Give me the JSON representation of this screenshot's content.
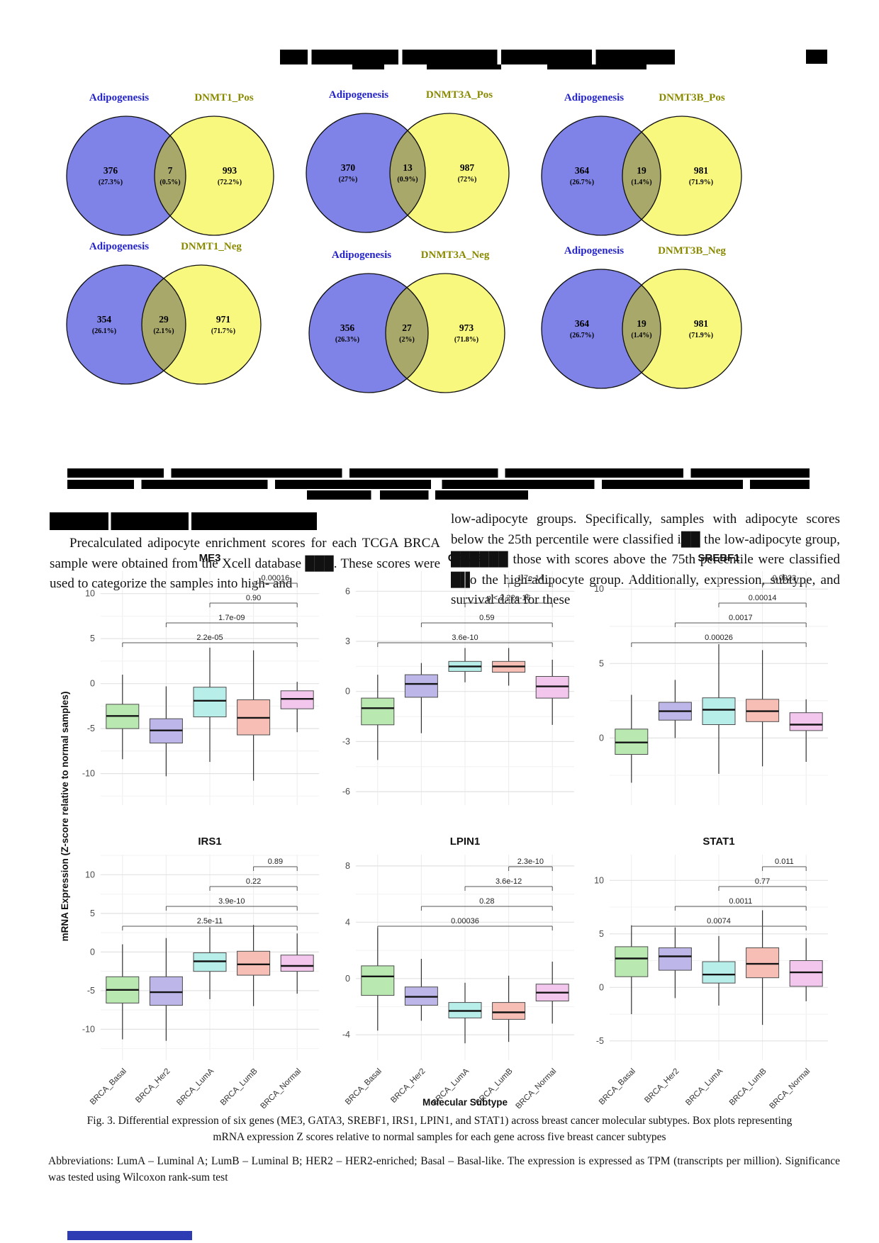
{
  "venn_figure": {
    "panels": [
      {
        "left_label": "Adipogenesis",
        "right_label": "DNMT1_Pos",
        "left_value": "376",
        "left_pct": "(27.3%)",
        "mid_value": "7",
        "mid_pct": "(0.5%)",
        "right_value": "993",
        "right_pct": "(72.2%)"
      },
      {
        "left_label": "Adipogenesis",
        "right_label": "DNMT3A_Pos",
        "left_value": "370",
        "left_pct": "(27%)",
        "mid_value": "13",
        "mid_pct": "(0.9%)",
        "right_value": "987",
        "right_pct": "(72%)"
      },
      {
        "left_label": "Adipogenesis",
        "right_label": "DNMT3B_Pos",
        "left_value": "364",
        "left_pct": "(26.7%)",
        "mid_value": "19",
        "mid_pct": "(1.4%)",
        "right_value": "981",
        "right_pct": "(71.9%)"
      },
      {
        "left_label": "Adipogenesis",
        "right_label": "DNMT1_Neg",
        "left_value": "354",
        "left_pct": "(26.1%)",
        "mid_value": "29",
        "mid_pct": "(2.1%)",
        "right_value": "971",
        "right_pct": "(71.7%)"
      },
      {
        "left_label": "Adipogenesis",
        "right_label": "DNMT3A_Neg",
        "left_value": "356",
        "left_pct": "(26.3%)",
        "mid_value": "27",
        "mid_pct": "(2%)",
        "right_value": "973",
        "right_pct": "(71.8%)"
      },
      {
        "left_label": "Adipogenesis",
        "right_label": "DNMT3B_Neg",
        "left_value": "364",
        "left_pct": "(26.7%)",
        "mid_value": "19",
        "mid_pct": "(1.4%)",
        "right_value": "981",
        "right_pct": "(71.9%)"
      }
    ],
    "colors": {
      "left_fill": "#7f82e6",
      "right_fill": "#f8f77e",
      "overlap_fill": "#a9a86b",
      "left_label": "#2323c8",
      "right_label": "#8a8a00"
    }
  },
  "body": {
    "left_paragraph": "Precalculated adipocyte enrichment scores for each TCGA BRCA sample were obtained from the Xcell database ███. These scores were used to categorize the samples into high- and",
    "right_paragraph": "low-adipocyte groups. Specifically, samples with adipocyte scores below the 25th percentile were classified i██ the low-adipocyte group, ██████ those with scores above the 75th percentile were classified ██o the high-adipocyte group. Additionally, expression, subtype, and survival data for these"
  },
  "chart_data": {
    "type": "boxplot-grid",
    "categories": [
      "BRCA_Basal",
      "BRCA_Her2",
      "BRCA_LumA",
      "BRCA_LumB",
      "BRCA_Normal"
    ],
    "xlabel": "Molecular Subtype",
    "ylabel": "mRNA Expression (Z-score relative to normal samples)",
    "fill_colors": [
      "#b9e8b1",
      "#bdb6e8",
      "#b7eeea",
      "#f6beb5",
      "#f3c6ee"
    ],
    "legend_position": "none",
    "grid": true,
    "panels": [
      {
        "title": "ME3",
        "yticks": [
          10,
          5,
          0,
          -5,
          -10
        ],
        "ylim": [
          -13.5,
          12.5
        ],
        "boxes": [
          {
            "lo": -8.4,
            "q1": -5.0,
            "med": -3.6,
            "q3": -2.3,
            "hi": 1.0
          },
          {
            "lo": -10.3,
            "q1": -6.6,
            "med": -5.2,
            "q3": -3.9,
            "hi": -0.3
          },
          {
            "lo": -8.7,
            "q1": -3.7,
            "med": -1.9,
            "q3": -0.4,
            "hi": 4.0
          },
          {
            "lo": -10.8,
            "q1": -5.7,
            "med": -3.8,
            "q3": -1.8,
            "hi": 3.7
          },
          {
            "lo": -5.4,
            "q1": -2.8,
            "med": -1.7,
            "q3": -0.8,
            "hi": 0.2
          }
        ],
        "brackets": [
          {
            "a": 4,
            "b": 5,
            "label": "0.00016"
          },
          {
            "a": 3,
            "b": 5,
            "label": "0.90"
          },
          {
            "a": 2,
            "b": 5,
            "label": "1.7e-09"
          },
          {
            "a": 1,
            "b": 5,
            "label": "2.2e-05"
          }
        ]
      },
      {
        "title": "GATA3",
        "yticks": [
          6,
          3,
          0,
          -3,
          -6
        ],
        "ylim": [
          -6.8,
          7.2
        ],
        "boxes": [
          {
            "lo": -4.1,
            "q1": -2.0,
            "med": -1.0,
            "q3": -0.4,
            "hi": 1.0
          },
          {
            "lo": -2.5,
            "q1": -0.35,
            "med": 0.45,
            "q3": 1.0,
            "hi": 1.7
          },
          {
            "lo": 0.55,
            "q1": 1.2,
            "med": 1.5,
            "q3": 1.8,
            "hi": 2.6
          },
          {
            "lo": 0.35,
            "q1": 1.15,
            "med": 1.5,
            "q3": 1.8,
            "hi": 2.6
          },
          {
            "lo": -2.0,
            "q1": -0.4,
            "med": 0.3,
            "q3": 0.9,
            "hi": 1.9
          }
        ],
        "brackets": [
          {
            "a": 4,
            "b": 5,
            "label": "1.7e-14"
          },
          {
            "a": 3,
            "b": 5,
            "label": "p < 2.22e-16"
          },
          {
            "a": 2,
            "b": 5,
            "label": "0.59"
          },
          {
            "a": 1,
            "b": 5,
            "label": "3.6e-10"
          }
        ]
      },
      {
        "title": "SREBF1",
        "yticks": [
          10,
          5,
          0
        ],
        "ylim": [
          -4.5,
          11.2
        ],
        "boxes": [
          {
            "lo": -3.0,
            "q1": -1.1,
            "med": -0.3,
            "q3": 0.6,
            "hi": 2.9
          },
          {
            "lo": 0.0,
            "q1": 1.2,
            "med": 1.8,
            "q3": 2.4,
            "hi": 3.9
          },
          {
            "lo": -2.4,
            "q1": 0.9,
            "med": 1.9,
            "q3": 2.7,
            "hi": 6.3
          },
          {
            "lo": -1.9,
            "q1": 1.1,
            "med": 1.8,
            "q3": 2.6,
            "hi": 5.9
          },
          {
            "lo": -1.6,
            "q1": 0.5,
            "med": 0.9,
            "q3": 1.7,
            "hi": 2.6
          }
        ],
        "brackets": [
          {
            "a": 4,
            "b": 5,
            "label": "0.0023"
          },
          {
            "a": 3,
            "b": 5,
            "label": "0.00014"
          },
          {
            "a": 2,
            "b": 5,
            "label": "0.0017"
          },
          {
            "a": 1,
            "b": 5,
            "label": "0.00026"
          }
        ]
      },
      {
        "title": "IRS1",
        "yticks": [
          10,
          5,
          0,
          -5,
          -10
        ],
        "ylim": [
          -14.0,
          12.6
        ],
        "boxes": [
          {
            "lo": -11.3,
            "q1": -6.6,
            "med": -4.9,
            "q3": -3.2,
            "hi": 1.0
          },
          {
            "lo": -11.5,
            "q1": -6.9,
            "med": -5.2,
            "q3": -3.2,
            "hi": 1.8
          },
          {
            "lo": -6.1,
            "q1": -2.5,
            "med": -1.2,
            "q3": -0.1,
            "hi": 3.2
          },
          {
            "lo": -7.0,
            "q1": -3.0,
            "med": -1.6,
            "q3": 0.1,
            "hi": 3.5
          },
          {
            "lo": -5.4,
            "q1": -2.5,
            "med": -1.8,
            "q3": -0.4,
            "hi": 2.4
          }
        ],
        "brackets": [
          {
            "a": 4,
            "b": 5,
            "label": "0.89"
          },
          {
            "a": 3,
            "b": 5,
            "label": "0.22"
          },
          {
            "a": 2,
            "b": 5,
            "label": "3.9e-10"
          },
          {
            "a": 1,
            "b": 5,
            "label": "2.5e-11"
          }
        ]
      },
      {
        "title": "LPIN1",
        "yticks": [
          8,
          4,
          0,
          -4
        ],
        "ylim": [
          -5.8,
          8.8
        ],
        "boxes": [
          {
            "lo": -3.7,
            "q1": -1.2,
            "med": 0.15,
            "q3": 0.9,
            "hi": 3.6
          },
          {
            "lo": -3.0,
            "q1": -1.9,
            "med": -1.3,
            "q3": -0.6,
            "hi": 1.4
          },
          {
            "lo": -4.6,
            "q1": -2.8,
            "med": -2.3,
            "q3": -1.7,
            "hi": -0.3
          },
          {
            "lo": -4.5,
            "q1": -2.9,
            "med": -2.4,
            "q3": -1.7,
            "hi": 0.2
          },
          {
            "lo": -3.2,
            "q1": -1.6,
            "med": -1.0,
            "q3": -0.4,
            "hi": 1.2
          }
        ],
        "brackets": [
          {
            "a": 4,
            "b": 5,
            "label": "2.3e-10"
          },
          {
            "a": 3,
            "b": 5,
            "label": "3.6e-12"
          },
          {
            "a": 2,
            "b": 5,
            "label": "0.28"
          },
          {
            "a": 1,
            "b": 5,
            "label": "0.00036"
          }
        ]
      },
      {
        "title": "STAT1",
        "yticks": [
          10,
          5,
          0,
          -5
        ],
        "ylim": [
          -6.8,
          12.4
        ],
        "boxes": [
          {
            "lo": -2.5,
            "q1": 1.0,
            "med": 2.7,
            "q3": 3.8,
            "hi": 5.8
          },
          {
            "lo": -1.0,
            "q1": 1.6,
            "med": 2.9,
            "q3": 3.7,
            "hi": 5.6
          },
          {
            "lo": -1.7,
            "q1": 0.4,
            "med": 1.2,
            "q3": 2.4,
            "hi": 4.8
          },
          {
            "lo": -3.5,
            "q1": 0.9,
            "med": 2.2,
            "q3": 3.7,
            "hi": 7.2
          },
          {
            "lo": -1.3,
            "q1": 0.1,
            "med": 1.4,
            "q3": 2.5,
            "hi": 4.6
          }
        ],
        "brackets": [
          {
            "a": 4,
            "b": 5,
            "label": "0.011"
          },
          {
            "a": 3,
            "b": 5,
            "label": "0.77"
          },
          {
            "a": 2,
            "b": 5,
            "label": "0.0011"
          },
          {
            "a": 1,
            "b": 5,
            "label": "0.0074"
          }
        ]
      }
    ]
  },
  "captions": {
    "fig3": "Fig. 3. Differential expression of six genes (ME3, GATA3, SREBF1, IRS1, LPIN1, and STAT1) across breast cancer molecular subtypes. Box plots representing mRNA expression Z scores relative to normal samples for each gene across five breast cancer subtypes",
    "abbreviations": "Abbreviations: LumA – Luminal A; LumB – Luminal B; HER2 – HER2-enriched; Basal – Basal-like. The expression is expressed as TPM (transcripts per million). Significance was tested using Wilcoxon rank-sum test"
  }
}
